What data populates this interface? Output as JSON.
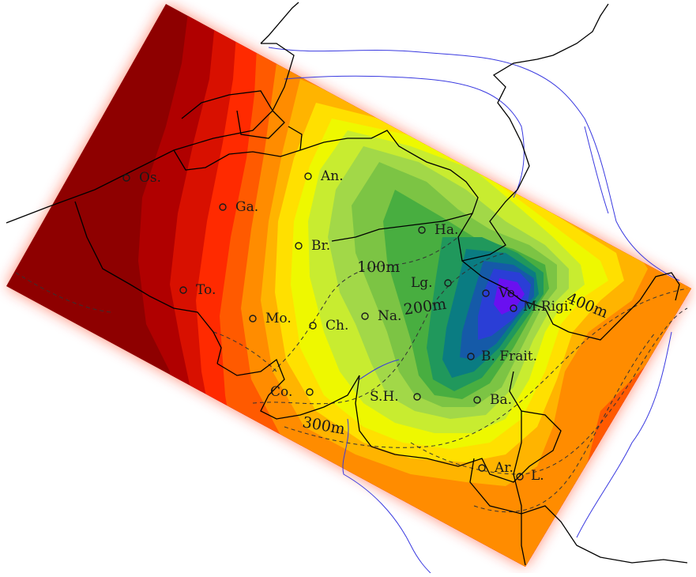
{
  "map": {
    "colors": {
      "c1": "#8e0000",
      "c2": "#b00000",
      "c3": "#d81000",
      "c4": "#ff2a00",
      "c5": "#ff5a00",
      "c6": "#ff8c00",
      "c7": "#ffb400",
      "c8": "#ffe000",
      "c9": "#eef800",
      "c10": "#c8ec30",
      "c11": "#a2d848",
      "c12": "#7cc444",
      "c13": "#48ae40",
      "c14": "#20985c",
      "c15": "#0a7c82",
      "c16": "#155aa8",
      "c17": "#2a3ed6",
      "c18": "#6a10f0",
      "border": "#000000",
      "river": "#3a3ae0",
      "contour": "#333333"
    },
    "cities": [
      {
        "name": "Os."
      },
      {
        "name": "Ga."
      },
      {
        "name": "An."
      },
      {
        "name": "Br."
      },
      {
        "name": "Ha."
      },
      {
        "name": "To."
      },
      {
        "name": "Mo."
      },
      {
        "name": "Ch."
      },
      {
        "name": "Na."
      },
      {
        "name": "Lg."
      },
      {
        "name": "Ve."
      },
      {
        "name": "M.Rigi."
      },
      {
        "name": "B. Frait."
      },
      {
        "name": "Co."
      },
      {
        "name": "S.H."
      },
      {
        "name": "Ba."
      },
      {
        "name": "Ar."
      },
      {
        "name": "L."
      }
    ],
    "contour_labels": [
      {
        "text": "100m"
      },
      {
        "text": "200m"
      },
      {
        "text": "300m"
      },
      {
        "text": "400m"
      }
    ]
  }
}
